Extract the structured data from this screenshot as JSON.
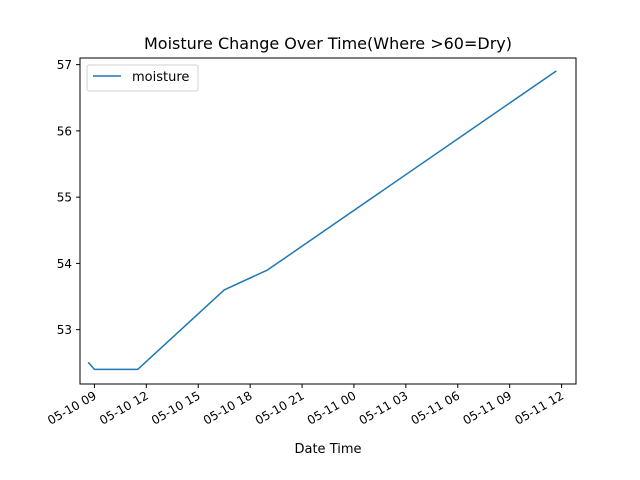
{
  "chart_data": {
    "type": "line",
    "title": "Moisture Change Over Time(Where >60=Dry)",
    "xlabel": "Date Time",
    "ylabel": "",
    "x_ticks": [
      "05-10 09",
      "05-10 12",
      "05-10 15",
      "05-10 18",
      "05-10 21",
      "05-11 00",
      "05-11 03",
      "05-11 06",
      "05-11 09",
      "05-11 12"
    ],
    "y_ticks": [
      "53",
      "54",
      "55",
      "56",
      "57"
    ],
    "xlim": [
      "2019-05-10 08:10",
      "2019-05-11 12:50"
    ],
    "ylim": [
      52.18,
      57.1
    ],
    "grid": false,
    "legend": "top-left",
    "series": [
      {
        "name": "moisture",
        "color": "#1f77b4",
        "points": [
          {
            "x": "2019-05-10 08:40",
            "y": 52.5
          },
          {
            "x": "2019-05-10 09:00",
            "y": 52.4
          },
          {
            "x": "2019-05-10 11:30",
            "y": 52.4
          },
          {
            "x": "2019-05-10 16:30",
            "y": 53.6
          },
          {
            "x": "2019-05-10 19:00",
            "y": 53.9
          },
          {
            "x": "2019-05-11 11:40",
            "y": 56.9
          }
        ]
      }
    ]
  }
}
